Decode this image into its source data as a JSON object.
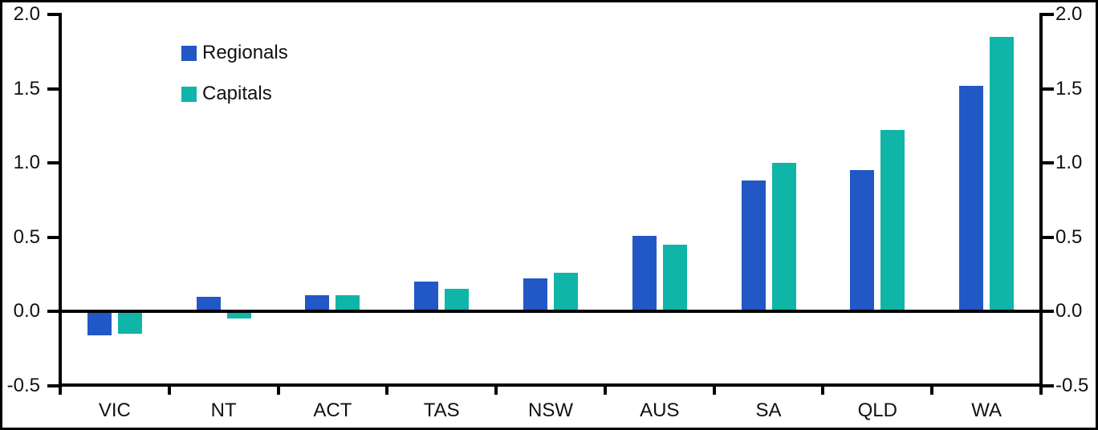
{
  "chart_data": {
    "type": "bar",
    "title": "",
    "xlabel": "",
    "ylabel": "",
    "categories": [
      "VIC",
      "NT",
      "ACT",
      "TAS",
      "NSW",
      "AUS",
      "SA",
      "QLD",
      "WA"
    ],
    "series": [
      {
        "name": "Regionals",
        "color": "#2257C6",
        "values": [
          -0.16,
          0.1,
          0.11,
          0.2,
          0.22,
          0.51,
          0.88,
          0.95,
          1.52
        ]
      },
      {
        "name": "Capitals",
        "color": "#0FB5A6",
        "values": [
          -0.15,
          -0.05,
          0.11,
          0.15,
          0.26,
          0.45,
          1.0,
          1.22,
          1.85
        ]
      }
    ],
    "ylim": [
      -0.5,
      2.0
    ],
    "y_ticks": [
      {
        "value": 2.0,
        "label": "2.0"
      },
      {
        "value": 1.5,
        "label": "1.5"
      },
      {
        "value": 1.0,
        "label": "1.0"
      },
      {
        "value": 0.5,
        "label": "0.5"
      },
      {
        "value": 0.0,
        "label": "0.0"
      },
      {
        "value": -0.5,
        "label": "-0.5"
      }
    ],
    "right_axis_mirrors_left": true,
    "grid": false,
    "legend_position": "inside-top-left",
    "colors": {
      "regionals": "#2257C6",
      "capitals": "#0FB5A6",
      "axis": "#000000",
      "background": "#ffffff"
    }
  }
}
